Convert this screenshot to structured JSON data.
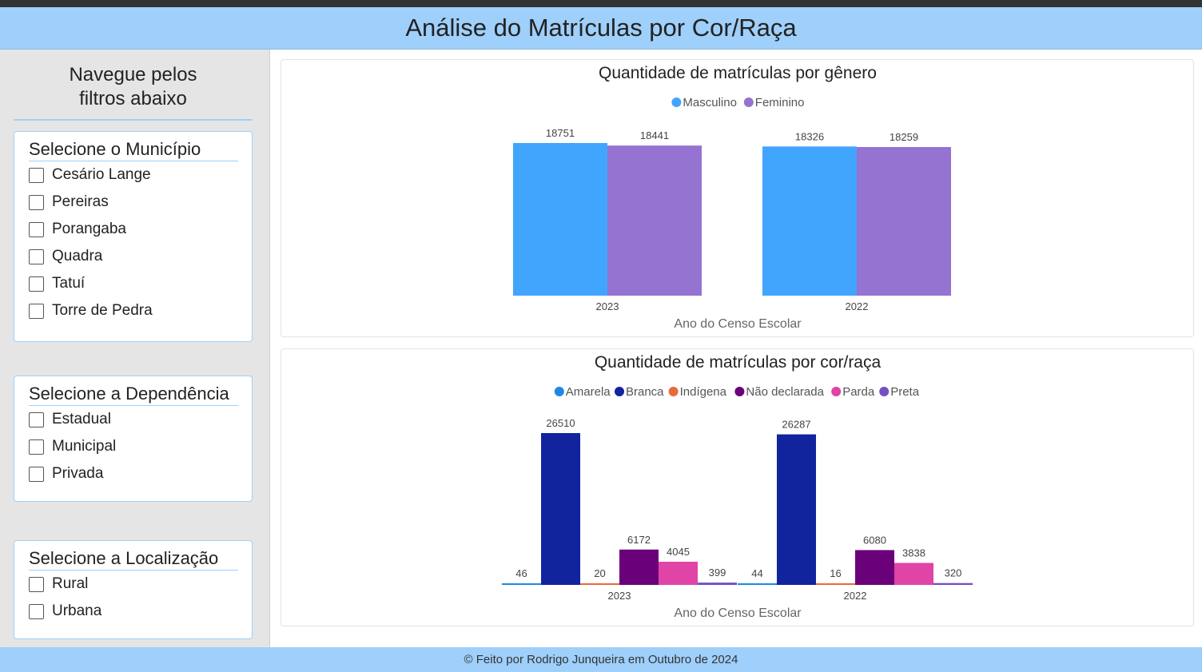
{
  "header": {
    "title": "Análise do Matrículas por Cor/Raça"
  },
  "sidebar": {
    "title_line1": "Navegue pelos",
    "title_line2": "filtros abaixo",
    "filters": [
      {
        "title": "Selecione o Município",
        "options": [
          "Cesário Lange",
          "Pereiras",
          "Porangaba",
          "Quadra",
          "Tatuí",
          "Torre de Pedra"
        ]
      },
      {
        "title": "Selecione a Dependência",
        "options": [
          "Estadual",
          "Municipal",
          "Privada"
        ]
      },
      {
        "title": "Selecione a Localização",
        "options": [
          "Rural",
          "Urbana"
        ]
      }
    ]
  },
  "footer": {
    "text": "© Feito por Rodrigo Junqueira em Outubro de 2024"
  },
  "chart_data": [
    {
      "type": "bar",
      "title": "Quantidade de matrículas por gênero",
      "xlabel": "Ano do Censo Escolar",
      "ylabel": "",
      "categories": [
        "2023",
        "2022"
      ],
      "legend_position": "top",
      "grid": false,
      "series": [
        {
          "name": "Masculino",
          "color": "#42a5fd",
          "values": [
            18751,
            18326
          ]
        },
        {
          "name": "Feminino",
          "color": "#9473d1",
          "values": [
            18441,
            18259
          ]
        }
      ]
    },
    {
      "type": "bar",
      "title": "Quantidade de matrículas por cor/raça",
      "xlabel": "Ano do Censo Escolar",
      "ylabel": "",
      "categories": [
        "2023",
        "2022"
      ],
      "legend_position": "top",
      "grid": false,
      "series": [
        {
          "name": "Amarela",
          "color": "#1e88e5",
          "values": [
            46,
            44
          ]
        },
        {
          "name": "Branca",
          "color": "#12239e",
          "values": [
            26510,
            26287
          ]
        },
        {
          "name": "Indígena",
          "color": "#e66c37",
          "values": [
            20,
            16
          ]
        },
        {
          "name": "Não declarada",
          "color": "#6b007b",
          "values": [
            6172,
            6080
          ]
        },
        {
          "name": "Parda",
          "color": "#e044a7",
          "values": [
            4045,
            3838
          ]
        },
        {
          "name": "Preta",
          "color": "#744ec2",
          "values": [
            399,
            320
          ]
        }
      ]
    }
  ]
}
